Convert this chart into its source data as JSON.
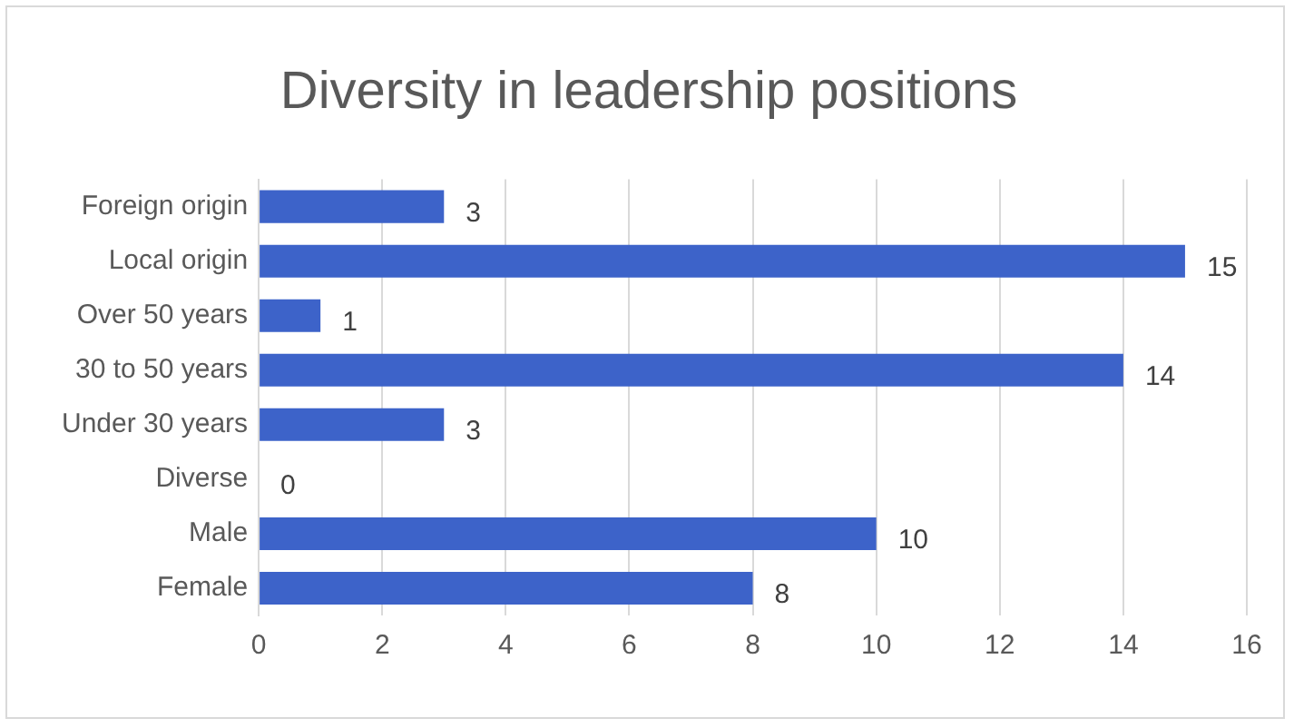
{
  "chart_data": {
    "type": "bar",
    "orientation": "horizontal",
    "title": "Diversity in leadership positions",
    "categories": [
      "Foreign origin",
      "Local origin",
      "Over 50 years",
      "30 to 50 years",
      "Under 30 years",
      "Diverse",
      "Male",
      "Female"
    ],
    "values": [
      3,
      15,
      1,
      14,
      3,
      0,
      10,
      8
    ],
    "color": "#3d63c9",
    "xlim": [
      0,
      16
    ],
    "xticks": [
      0,
      2,
      4,
      6,
      8,
      10,
      12,
      14,
      16
    ],
    "grid": "x",
    "data_labels": true,
    "legend": false
  }
}
